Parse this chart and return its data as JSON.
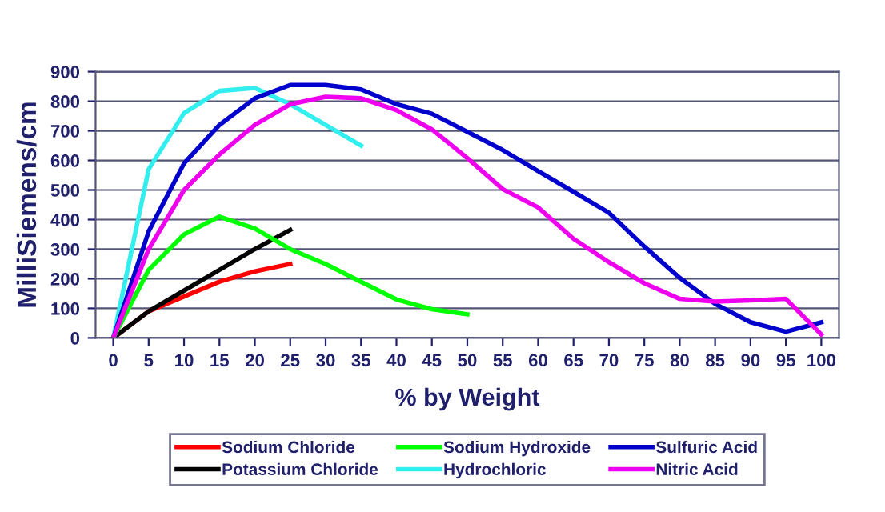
{
  "chart_data": {
    "type": "line",
    "xlabel": "% by Weight",
    "ylabel": "MilliSiemens/cm",
    "xlim": [
      -2.5,
      102.5
    ],
    "xticks": [
      0,
      5,
      10,
      15,
      20,
      25,
      30,
      35,
      40,
      45,
      50,
      55,
      60,
      65,
      70,
      75,
      80,
      85,
      90,
      95,
      100
    ],
    "ylim": [
      0,
      900
    ],
    "yticks": [
      0,
      100,
      200,
      300,
      400,
      500,
      600,
      700,
      800,
      900
    ],
    "grid": "y",
    "legend": "bottom",
    "marker": "none",
    "line_style": "solid",
    "series": [
      {
        "name": "Sodium Chloride",
        "color": "#ff0000",
        "x": [
          0,
          5,
          10,
          15,
          20,
          25
        ],
        "values": [
          0,
          90,
          140,
          190,
          225,
          250
        ]
      },
      {
        "name": "Potassium Chloride",
        "color": "#000000",
        "x": [
          0,
          5,
          10,
          15,
          20,
          25
        ],
        "values": [
          0,
          90,
          160,
          230,
          300,
          365
        ]
      },
      {
        "name": "Sodium Hydroxide",
        "color": "#00ff00",
        "x": [
          0,
          5,
          10,
          15,
          20,
          25,
          30,
          35,
          40,
          45,
          50
        ],
        "values": [
          0,
          230,
          350,
          410,
          370,
          300,
          250,
          190,
          130,
          97,
          80
        ]
      },
      {
        "name": "Hydrochloric",
        "color": "#33eeee",
        "x": [
          0,
          5,
          10,
          15,
          20,
          25,
          30,
          35
        ],
        "values": [
          0,
          570,
          760,
          835,
          845,
          790,
          720,
          650
        ]
      },
      {
        "name": "Sulfuric Acid",
        "color": "#0000cc",
        "x": [
          0,
          5,
          10,
          15,
          20,
          25,
          30,
          35,
          40,
          45,
          50,
          55,
          60,
          65,
          70,
          75,
          80,
          85,
          90,
          95,
          100
        ],
        "values": [
          0,
          360,
          590,
          720,
          810,
          855,
          855,
          840,
          790,
          758,
          697,
          635,
          564,
          494,
          423,
          309,
          203,
          115,
          53,
          21,
          53
        ]
      },
      {
        "name": "Nitric Acid",
        "color": "#ee00ee",
        "x": [
          0,
          5,
          10,
          15,
          20,
          25,
          30,
          35,
          40,
          45,
          50,
          55,
          60,
          65,
          70,
          75,
          80,
          85,
          90,
          95,
          100
        ],
        "values": [
          0,
          300,
          500,
          620,
          720,
          790,
          815,
          810,
          770,
          705,
          608,
          503,
          441,
          335,
          256,
          185,
          132,
          123,
          127,
          132,
          12
        ]
      }
    ]
  }
}
